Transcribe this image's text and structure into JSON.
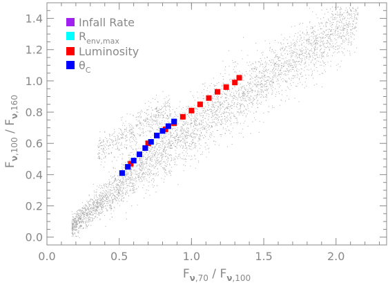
{
  "chart_data": {
    "type": "scatter",
    "title": "",
    "xlabel": {
      "main": "F",
      "sub1": "ν",
      "sub1b": ",70",
      "mid": " / F",
      "sub2": "ν",
      "sub2b": ",100"
    },
    "ylabel": {
      "main": "F",
      "sub1": "ν",
      "sub1b": ",100",
      "mid": " / F",
      "sub2": "ν",
      "sub2b": ",160"
    },
    "xlim": [
      0.0,
      2.35
    ],
    "ylim": [
      -0.05,
      1.5
    ],
    "xticks": [
      "0.0",
      "0.5",
      "1.0",
      "1.5",
      "2.0"
    ],
    "xtick_values": [
      0.0,
      0.5,
      1.0,
      1.5,
      2.0
    ],
    "yticks": [
      "0.0",
      "0.2",
      "0.4",
      "0.6",
      "0.8",
      "1.0",
      "1.2",
      "1.4"
    ],
    "ytick_values": [
      0.0,
      0.2,
      0.4,
      0.6,
      0.8,
      1.0,
      1.2,
      1.4
    ],
    "grid": false,
    "legend_position": "top-left",
    "background_cloud": {
      "color": "#a9a9a9",
      "description_points": [
        [
          0.17,
          0.07
        ],
        [
          0.3,
          0.22
        ],
        [
          0.5,
          0.38
        ],
        [
          0.7,
          0.55
        ],
        [
          0.9,
          0.68
        ],
        [
          1.1,
          0.82
        ],
        [
          1.3,
          0.95
        ],
        [
          1.5,
          1.08
        ],
        [
          1.7,
          1.18
        ],
        [
          1.9,
          1.3
        ],
        [
          2.1,
          1.42
        ]
      ]
    },
    "series": [
      {
        "name": "Infall Rate",
        "color": "#a020f0",
        "x": [
          0.52,
          0.56,
          0.6,
          0.64,
          0.68,
          0.72,
          0.76,
          0.8,
          0.84,
          0.88
        ],
        "y": [
          0.41,
          0.45,
          0.49,
          0.53,
          0.57,
          0.61,
          0.65,
          0.68,
          0.71,
          0.74
        ]
      },
      {
        "name": "R",
        "name_sub": "env,max",
        "color": "#00ffff",
        "x": [
          0.52,
          0.56,
          0.6,
          0.64,
          0.68,
          0.72,
          0.76,
          0.8,
          0.84,
          0.88
        ],
        "y": [
          0.41,
          0.45,
          0.49,
          0.53,
          0.57,
          0.61,
          0.65,
          0.68,
          0.71,
          0.74
        ]
      },
      {
        "name": "Luminosity",
        "color": "#ff0000",
        "x": [
          0.52,
          0.58,
          0.64,
          0.7,
          0.76,
          0.82,
          0.88,
          0.94,
          1.0,
          1.06,
          1.12,
          1.18,
          1.24,
          1.3,
          1.33
        ],
        "y": [
          0.41,
          0.47,
          0.53,
          0.6,
          0.65,
          0.69,
          0.73,
          0.77,
          0.81,
          0.85,
          0.89,
          0.93,
          0.96,
          0.99,
          1.02
        ]
      },
      {
        "name": "θ",
        "name_sub": "C",
        "color": "#0000ff",
        "x": [
          0.52,
          0.56,
          0.6,
          0.64,
          0.68,
          0.72,
          0.76,
          0.8,
          0.84,
          0.88
        ],
        "y": [
          0.41,
          0.45,
          0.49,
          0.53,
          0.57,
          0.61,
          0.65,
          0.68,
          0.71,
          0.74
        ]
      }
    ]
  }
}
